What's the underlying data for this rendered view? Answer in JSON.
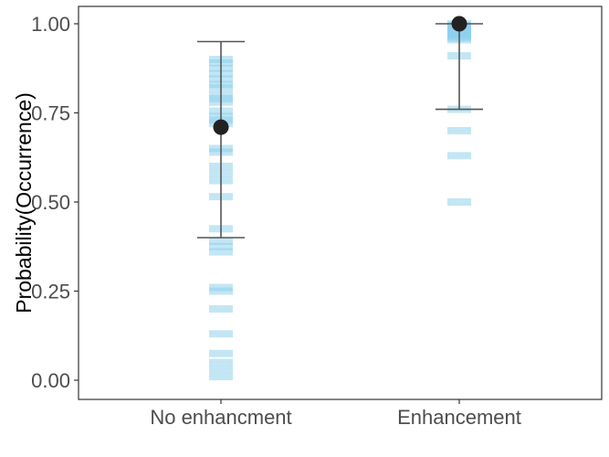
{
  "chart_data": {
    "type": "scatter",
    "title": "",
    "xlabel": "",
    "ylabel": "Probability(Occurrence)",
    "ylim": [
      -0.05,
      1.04
    ],
    "categories": [
      "No enhancment",
      "Enhancement"
    ],
    "y_ticks": [
      0.0,
      0.25,
      0.5,
      0.75,
      1.0
    ],
    "y_tick_labels": [
      "0.00",
      "0.25",
      "0.50",
      "0.75",
      "1.00"
    ],
    "grid": false,
    "colors": {
      "observations": "#87CEEB",
      "mean_point": "#222222",
      "error_bar": "#555555",
      "frame": "#333333"
    },
    "means": [
      {
        "category": "No enhancment",
        "y": 0.71
      },
      {
        "category": "Enhancement",
        "y": 1.0
      }
    ],
    "intervals": [
      {
        "category": "No enhancment",
        "lower": 0.4,
        "upper": 0.95
      },
      {
        "category": "Enhancement",
        "lower": 0.76,
        "upper": 1.0
      }
    ],
    "observations": [
      {
        "category": "No enhancment",
        "values": [
          0.9,
          0.89,
          0.875,
          0.86,
          0.845,
          0.83,
          0.82,
          0.8,
          0.79,
          0.78,
          0.755,
          0.74,
          0.73,
          0.72,
          0.65,
          0.64,
          0.6,
          0.58,
          0.56,
          0.515,
          0.425,
          0.39,
          0.375,
          0.36,
          0.26,
          0.25,
          0.2,
          0.13,
          0.075,
          0.05,
          0.03,
          0.01
        ]
      },
      {
        "category": "Enhancement",
        "values": [
          1.0,
          0.995,
          0.99,
          0.985,
          0.98,
          0.975,
          0.97,
          0.965,
          0.96,
          0.955,
          0.91,
          0.76,
          0.7,
          0.63,
          0.5
        ]
      }
    ]
  }
}
